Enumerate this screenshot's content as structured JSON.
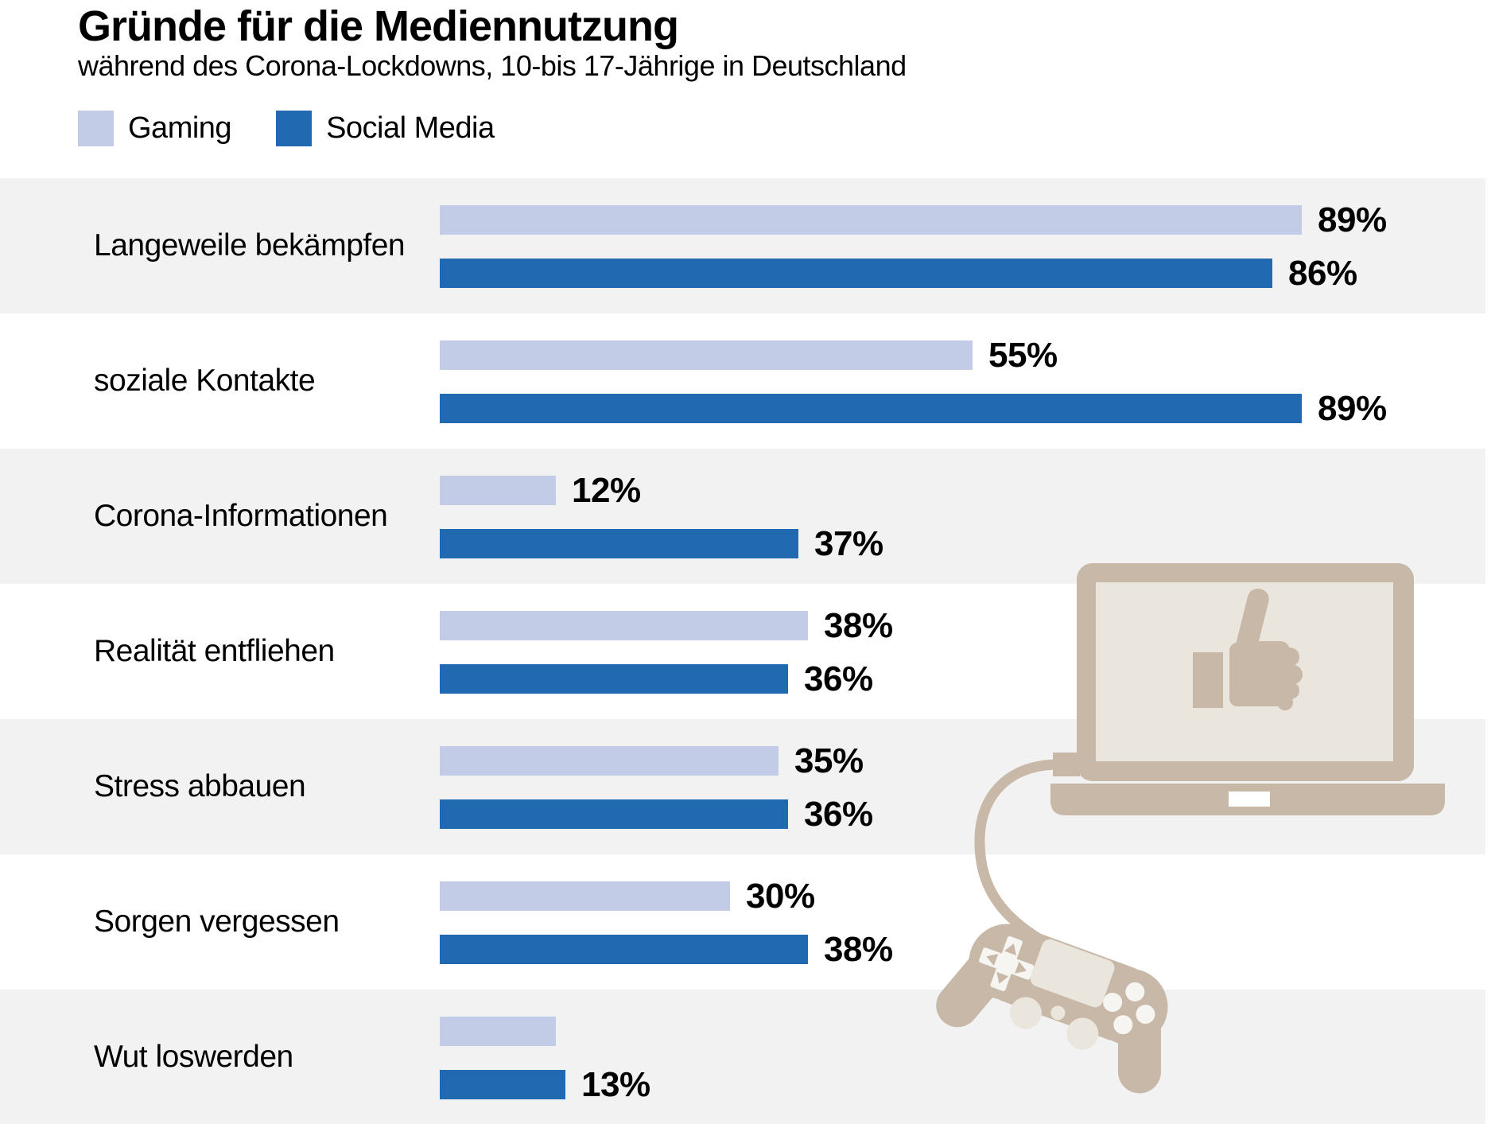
{
  "header": {
    "title": "Gründe für die Mediennutzung",
    "subtitle": "während des Corona-Lockdowns, 10-bis 17-Jährige in Deutschland"
  },
  "legend": {
    "items": [
      {
        "label": "Gaming",
        "color": "#c3cce7"
      },
      {
        "label": "Social Media",
        "color": "#2169b0"
      }
    ]
  },
  "colors": {
    "gaming": "#c3cce7",
    "social_media": "#2169b0",
    "row_stripe": "#f2f2f2",
    "illustration_beige": "#c8b8a7",
    "illustration_light": "#eae5dd",
    "text": "#000000"
  },
  "chart_data": {
    "type": "bar",
    "orientation": "horizontal",
    "unit": "%",
    "xlim": [
      0,
      100
    ],
    "grid": false,
    "legend_position": "top-left",
    "title": "Gründe für die Mediennutzung",
    "subtitle": "während des Corona-Lockdowns, 10-bis 17-Jährige in Deutschland",
    "categories": [
      "Langeweile bekämpfen",
      "soziale Kontakte",
      "Corona-Informationen",
      "Realität entfliehen",
      "Stress abbauen",
      "Sorgen vergessen",
      "Wut loswerden"
    ],
    "series": [
      {
        "name": "Gaming",
        "values": [
          89,
          55,
          12,
          38,
          35,
          30,
          12
        ],
        "value_labels": [
          "89%",
          "55%",
          "12%",
          "38%",
          "35%",
          "30%",
          ""
        ]
      },
      {
        "name": "Social Media",
        "values": [
          86,
          89,
          37,
          36,
          36,
          38,
          13
        ],
        "value_labels": [
          "86%",
          "89%",
          "37%",
          "36%",
          "36%",
          "38%",
          "13%"
        ]
      }
    ]
  },
  "illustration": {
    "items": [
      "laptop",
      "thumbs-up",
      "cable",
      "game-controller"
    ]
  }
}
